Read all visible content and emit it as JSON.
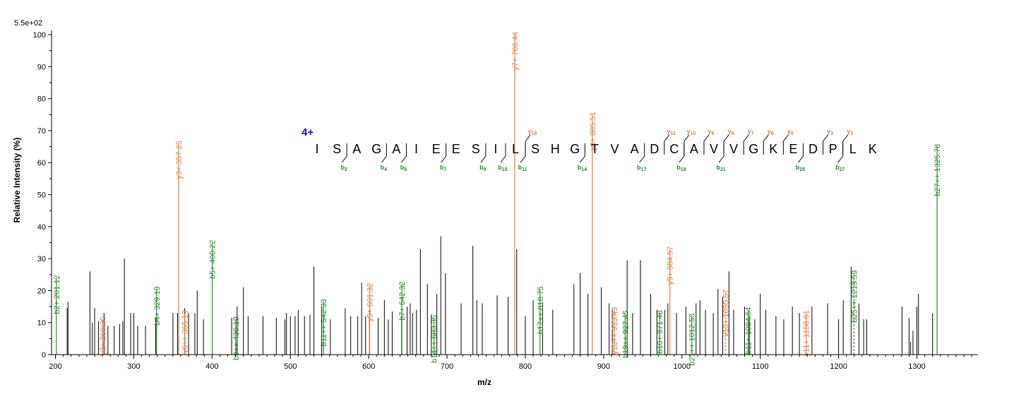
{
  "chart_data": {
    "type": "bar",
    "title": "",
    "xlabel": "m/z",
    "ylabel": "Relative   Intensity (%)",
    "max_intensity_label": "5.5e+02",
    "xlim": [
      195,
      1378
    ],
    "ylim": [
      0,
      102
    ],
    "x_ticks": [
      200,
      300,
      400,
      500,
      600,
      700,
      800,
      900,
      1000,
      1100,
      1200,
      1300
    ],
    "y_ticks": [
      0,
      10,
      20,
      30,
      40,
      50,
      60,
      70,
      80,
      90,
      100
    ],
    "colors": {
      "b_ion": "#2a8a2a",
      "y_ion": "#e0804a",
      "unmatched": "#000000",
      "charge": "#1010c0"
    },
    "unmatched_peaks": [
      [
        215,
        14.5
      ],
      [
        216,
        16.5
      ],
      [
        244,
        26
      ],
      [
        247,
        10
      ],
      [
        250,
        14.5
      ],
      [
        255,
        10.5
      ],
      [
        262,
        13
      ],
      [
        267,
        9
      ],
      [
        275,
        9
      ],
      [
        282,
        9.5
      ],
      [
        286,
        10.5
      ],
      [
        288,
        30
      ],
      [
        296,
        13
      ],
      [
        300,
        13
      ],
      [
        305,
        9
      ],
      [
        315,
        9
      ],
      [
        328,
        11.5
      ],
      [
        350,
        13
      ],
      [
        356,
        13
      ],
      [
        365,
        14.5
      ],
      [
        370,
        13
      ],
      [
        378,
        13
      ],
      [
        381,
        20
      ],
      [
        389,
        11
      ],
      [
        425,
        11.5
      ],
      [
        432,
        15
      ],
      [
        440,
        21
      ],
      [
        446,
        12
      ],
      [
        465,
        12
      ],
      [
        482,
        11.5
      ],
      [
        493,
        11
      ],
      [
        495,
        13
      ],
      [
        500,
        12
      ],
      [
        506,
        12
      ],
      [
        510,
        14
      ],
      [
        518,
        12
      ],
      [
        525,
        12.5
      ],
      [
        530,
        27.5
      ],
      [
        540,
        15
      ],
      [
        551,
        11
      ],
      [
        570,
        14.5
      ],
      [
        577,
        12
      ],
      [
        586,
        12
      ],
      [
        591,
        22.5
      ],
      [
        596,
        12
      ],
      [
        601,
        14
      ],
      [
        612,
        11.5
      ],
      [
        620,
        17
      ],
      [
        625,
        11
      ],
      [
        630,
        13.5
      ],
      [
        642,
        12
      ],
      [
        649,
        15
      ],
      [
        653,
        16
      ],
      [
        656,
        13
      ],
      [
        661,
        14
      ],
      [
        666,
        33
      ],
      [
        675,
        22
      ],
      [
        680,
        12.5
      ],
      [
        687,
        19
      ],
      [
        692,
        37
      ],
      [
        698,
        25.5
      ],
      [
        718,
        16
      ],
      [
        733,
        34
      ],
      [
        738,
        17
      ],
      [
        745,
        16
      ],
      [
        764,
        18.5
      ],
      [
        778,
        18
      ],
      [
        789,
        33
      ],
      [
        800,
        12
      ],
      [
        810,
        17
      ],
      [
        822,
        16
      ],
      [
        835,
        14
      ],
      [
        862,
        22
      ],
      [
        870,
        25.5
      ],
      [
        880,
        19
      ],
      [
        897,
        21
      ],
      [
        907,
        16
      ],
      [
        911,
        14.5
      ],
      [
        930,
        29.5
      ],
      [
        937,
        13
      ],
      [
        947,
        29.5
      ],
      [
        960,
        19
      ],
      [
        968,
        14
      ],
      [
        978,
        14
      ],
      [
        982,
        16
      ],
      [
        993,
        13
      ],
      [
        1005,
        15
      ],
      [
        1018,
        16
      ],
      [
        1023,
        17
      ],
      [
        1030,
        14
      ],
      [
        1040,
        13
      ],
      [
        1046,
        20.5
      ],
      [
        1052,
        18
      ],
      [
        1060,
        26
      ],
      [
        1066,
        14
      ],
      [
        1080,
        15
      ],
      [
        1086,
        12
      ],
      [
        1093,
        11
      ],
      [
        1100,
        19
      ],
      [
        1107,
        14
      ],
      [
        1120,
        12
      ],
      [
        1130,
        11
      ],
      [
        1141,
        15
      ],
      [
        1150,
        13
      ],
      [
        1166,
        15
      ],
      [
        1186,
        16
      ],
      [
        1200,
        11
      ],
      [
        1206,
        17
      ],
      [
        1216,
        27.5
      ],
      [
        1226,
        16
      ],
      [
        1232,
        11
      ],
      [
        1236,
        11
      ],
      [
        1281,
        15
      ],
      [
        1290,
        11.5
      ],
      [
        1292,
        4
      ],
      [
        1295,
        7.5
      ],
      [
        1300,
        15
      ],
      [
        1302,
        19
      ],
      [
        1320,
        13
      ]
    ],
    "matched_peaks": [
      {
        "ion": "b",
        "mz": 201.12,
        "intensity": 24,
        "label": "b2+ 201.12",
        "dashed": false
      },
      {
        "ion": "y",
        "mz": 260.2,
        "intensity": 11,
        "label": "y2+ 260.20",
        "dashed": false
      },
      {
        "ion": "b",
        "mz": 329.19,
        "intensity": 20.5,
        "label": "b4+ 329.19",
        "dashed": false
      },
      {
        "ion": "y",
        "mz": 357.25,
        "intensity": 66,
        "label": "y3+ 357.25",
        "dashed": false
      },
      {
        "ion": "y",
        "mz": 365.19,
        "intensity": 13,
        "label": "y6++ 365.19",
        "dashed": false
      },
      {
        "ion": "b",
        "mz": 400.22,
        "intensity": 35,
        "label": "b5+ 400.22",
        "dashed": false
      },
      {
        "ion": "b",
        "mz": 430.19,
        "intensity": 11,
        "label": "b9++ 430.19",
        "dashed": false
      },
      {
        "ion": "b",
        "mz": 542.33,
        "intensity": 16.5,
        "label": "b11++ 542.33",
        "dashed": false
      },
      {
        "ion": "y",
        "mz": 601.32,
        "intensity": 21.5,
        "label": "y5+ 601.32",
        "dashed": false
      },
      {
        "ion": "b",
        "mz": 642.32,
        "intensity": 22,
        "label": "b7+ 642.32",
        "dashed": false
      },
      {
        "ion": "b",
        "mz": 683.35,
        "intensity": 11.5,
        "label": "b14++ 683.35",
        "dashed": false
      },
      {
        "ion": "y",
        "mz": 786.44,
        "intensity": 100,
        "label": "y7+ 786.44",
        "dashed": false
      },
      {
        "ion": "b",
        "mz": 818.75,
        "intensity": 20.5,
        "label": "b17++ 818.75",
        "dashed": false
      },
      {
        "ion": "y",
        "mz": 885.51,
        "intensity": 75,
        "label": "y8+ 885.51",
        "dashed": false
      },
      {
        "ion": "y",
        "mz": 913.43,
        "intensity": 14,
        "label": "y18++ 913.43",
        "dashed": false
      },
      {
        "ion": "b",
        "mz": 927.45,
        "intensity": 13,
        "label": "b19++ 927.45",
        "dashed": false
      },
      {
        "ion": "b",
        "mz": 971.48,
        "intensity": 13,
        "label": "b10+ 971.48",
        "dashed": false
      },
      {
        "ion": "y",
        "mz": 984.57,
        "intensity": 33,
        "label": "y9+ 984.57",
        "dashed": false
      },
      {
        "ion": "b",
        "mz": 1012.53,
        "intensity": 12,
        "label": "b21++ 1012.53",
        "dashed": false
      },
      {
        "ion": "y",
        "mz": 1055.57,
        "intensity": 19.5,
        "label": "y10+ 1055.57",
        "dashed": true
      },
      {
        "ion": "b",
        "mz": 1084.64,
        "intensity": 14,
        "label": "b11+ 1084.64",
        "dashed": false
      },
      {
        "ion": "y",
        "mz": 1158.61,
        "intensity": 13,
        "label": "y11+ 1158.61",
        "dashed": false
      },
      {
        "ion": "b",
        "mz": 1219.59,
        "intensity": 25.5,
        "label": "b25++ 1219.59",
        "dashed": true
      },
      {
        "ion": "b",
        "mz": 1325.78,
        "intensity": 65,
        "label": "b27++ 1325.78",
        "dashed": false
      }
    ],
    "peptide": {
      "charge_label": "4+",
      "residues": [
        "I",
        "S",
        "A",
        "G",
        "A",
        "I",
        "E",
        "E",
        "S",
        "I",
        "L",
        "S",
        "H",
        "G",
        "T",
        "V",
        "A",
        "D",
        "C",
        "A",
        "V",
        "V",
        "G",
        "K",
        "E",
        "D",
        "P",
        "L",
        "K"
      ],
      "b_ions": [
        {
          "after": 2,
          "label": "b",
          "sub": "2"
        },
        {
          "after": 4,
          "label": "b",
          "sub": "4"
        },
        {
          "after": 5,
          "label": "b",
          "sub": "5"
        },
        {
          "after": 7,
          "label": "b",
          "sub": "7"
        },
        {
          "after": 9,
          "label": "b",
          "sub": "9"
        },
        {
          "after": 10,
          "label": "b",
          "sub": "10"
        },
        {
          "after": 11,
          "label": "b",
          "sub": "11"
        },
        {
          "after": 14,
          "label": "b",
          "sub": "14"
        },
        {
          "after": 17,
          "label": "b",
          "sub": "17"
        },
        {
          "after": 19,
          "label": "b",
          "sub": "19"
        },
        {
          "after": 21,
          "label": "b",
          "sub": "21"
        },
        {
          "after": 25,
          "label": "b",
          "sub": "25"
        },
        {
          "after": 27,
          "label": "b",
          "sub": "27"
        }
      ],
      "y_ions": [
        {
          "after": 11,
          "label": "y",
          "sub": "18"
        },
        {
          "after": 18,
          "label": "y",
          "sub": "11"
        },
        {
          "after": 19,
          "label": "y",
          "sub": "10"
        },
        {
          "after": 20,
          "label": "y",
          "sub": "9"
        },
        {
          "after": 21,
          "label": "y",
          "sub": "8"
        },
        {
          "after": 22,
          "label": "y",
          "sub": "7"
        },
        {
          "after": 23,
          "label": "y",
          "sub": "6"
        },
        {
          "after": 24,
          "label": "y",
          "sub": "5"
        },
        {
          "after": 26,
          "label": "y",
          "sub": "3"
        },
        {
          "after": 27,
          "label": "y",
          "sub": "2"
        }
      ]
    }
  }
}
